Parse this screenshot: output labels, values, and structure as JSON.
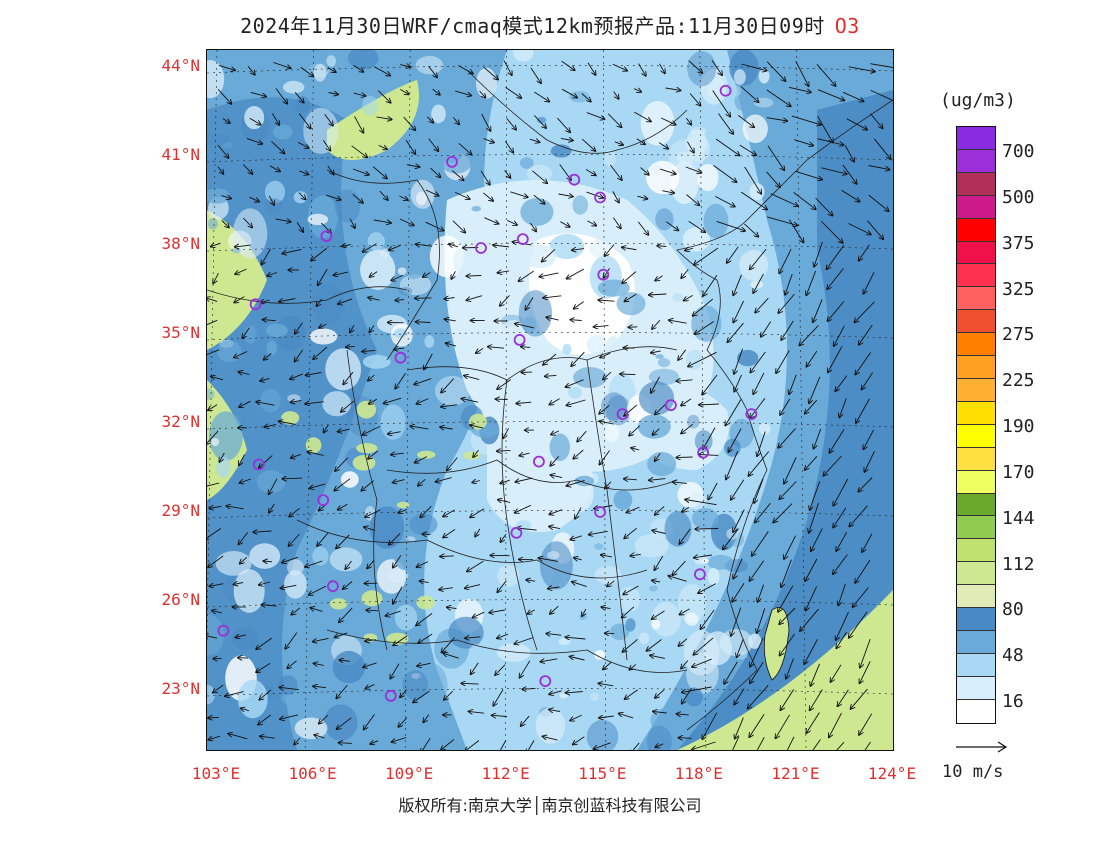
{
  "title": {
    "main": "2024年11月30日WRF/cmaq模式12km预报产品:11月30日09时",
    "variable": "O3"
  },
  "lat_ticks": [
    "44°N",
    "41°N",
    "38°N",
    "35°N",
    "32°N",
    "29°N",
    "26°N",
    "23°N"
  ],
  "lon_ticks": [
    "103°E",
    "106°E",
    "109°E",
    "112°E",
    "115°E",
    "118°E",
    "121°E",
    "124°E"
  ],
  "legend": {
    "unit": "(ug/m3)",
    "colors": [
      "#8a2be2",
      "#9b30d9",
      "#b0305a",
      "#cc1a8a",
      "#ff0000",
      "#f0104a",
      "#ff3050",
      "#ff6060",
      "#f05030",
      "#ff8000",
      "#ffa020",
      "#ffb030",
      "#ffe000",
      "#ffff00",
      "#ffe040",
      "#f0ff60",
      "#6aa82a",
      "#90cc50",
      "#c0e070",
      "#cde890",
      "#e0ecb8",
      "#4a8ac4",
      "#6aaad8",
      "#a8d8f4",
      "#d8eefa",
      "#ffffff"
    ],
    "labels": [
      "700",
      "500",
      "375",
      "325",
      "275",
      "225",
      "190",
      "170",
      "144",
      "112",
      "80",
      "48",
      "16"
    ]
  },
  "wind_key": {
    "label": "10 m/s"
  },
  "copyright": "版权所有:南京大学│南京创蓝科技有限公司",
  "stations": [
    {
      "lon": 118.8,
      "lat": 43.2
    },
    {
      "lon": 110.3,
      "lat": 40.8
    },
    {
      "lon": 114.1,
      "lat": 40.2
    },
    {
      "lon": 114.9,
      "lat": 39.6
    },
    {
      "lon": 106.4,
      "lat": 38.3
    },
    {
      "lon": 111.2,
      "lat": 37.9
    },
    {
      "lon": 112.5,
      "lat": 38.2
    },
    {
      "lon": 115.0,
      "lat": 37.0
    },
    {
      "lon": 104.2,
      "lat": 36.0
    },
    {
      "lon": 112.4,
      "lat": 34.8
    },
    {
      "lon": 108.7,
      "lat": 34.2
    },
    {
      "lon": 117.1,
      "lat": 32.6
    },
    {
      "lon": 115.6,
      "lat": 32.3
    },
    {
      "lon": 119.6,
      "lat": 32.3
    },
    {
      "lon": 118.1,
      "lat": 31.0
    },
    {
      "lon": 104.3,
      "lat": 30.6
    },
    {
      "lon": 113.0,
      "lat": 30.7
    },
    {
      "lon": 106.3,
      "lat": 29.4
    },
    {
      "lon": 114.9,
      "lat": 29.0
    },
    {
      "lon": 112.3,
      "lat": 28.3
    },
    {
      "lon": 106.6,
      "lat": 26.5
    },
    {
      "lon": 118.0,
      "lat": 26.9
    },
    {
      "lon": 103.2,
      "lat": 25.0
    },
    {
      "lon": 108.4,
      "lat": 22.8
    },
    {
      "lon": 113.2,
      "lat": 23.3
    }
  ],
  "map_colors": {
    "sea_dark": "#4a8ac4",
    "mid": "#6aaad8",
    "light": "#a8d8f4",
    "pale": "#d8eefa",
    "white": "#ffffff",
    "yellowgreen": "#cde890",
    "station": "#9b30d9"
  }
}
